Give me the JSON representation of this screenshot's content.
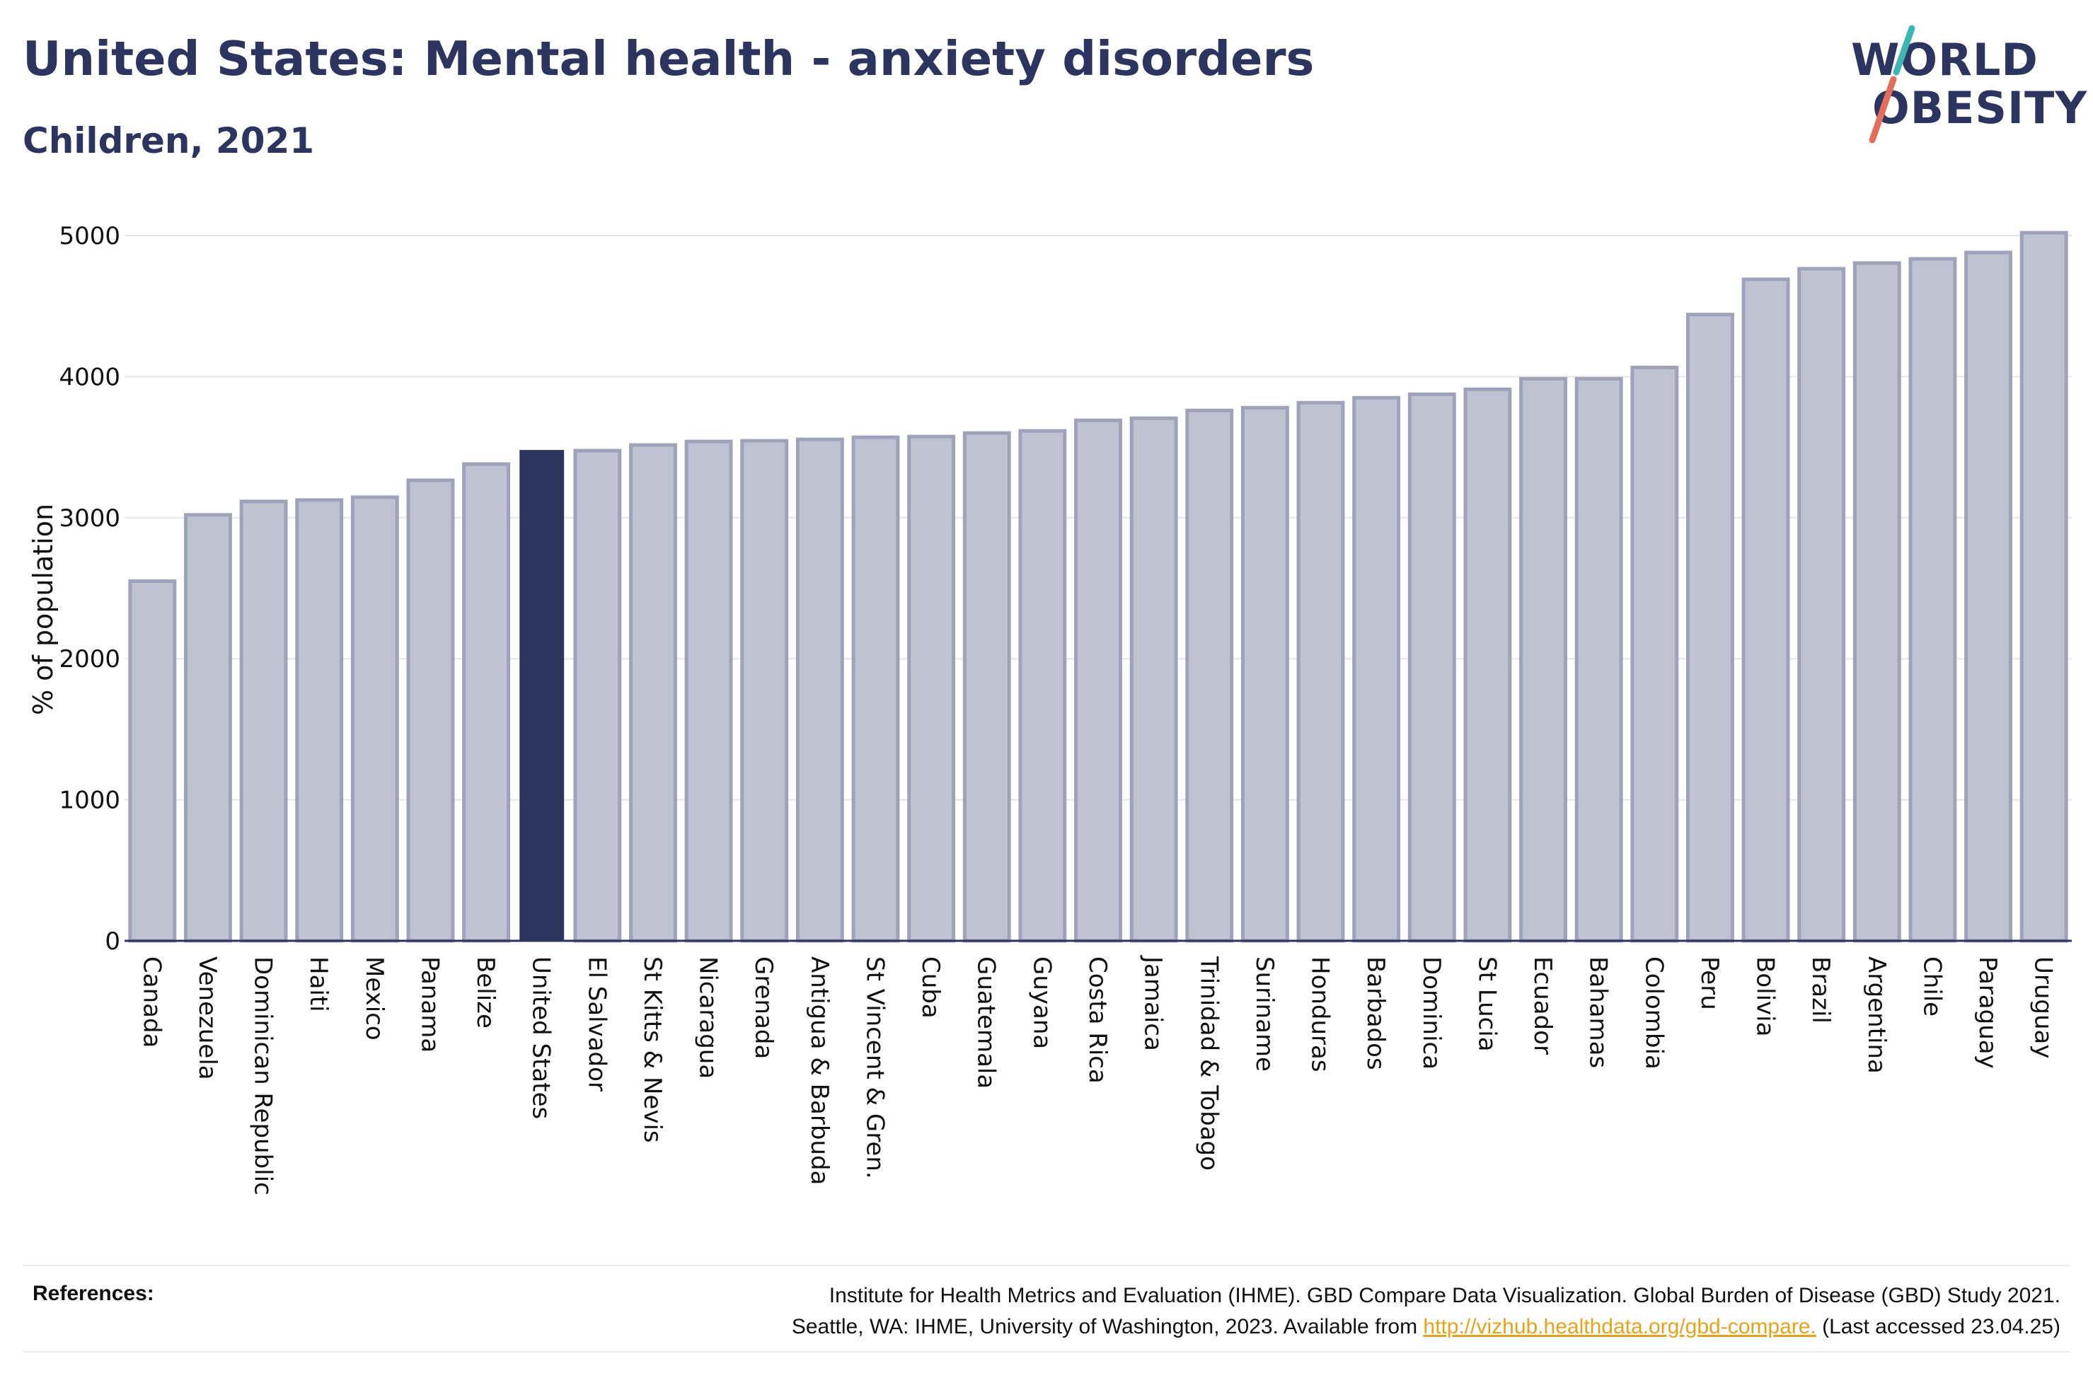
{
  "header": {
    "title": "United States: Mental health - anxiety disorders",
    "subtitle": "Children, 2021"
  },
  "logo": {
    "line1": "WORLD",
    "line2": "OBESITY"
  },
  "colors": {
    "highlight": "#2b3560",
    "bar_fill": "#bfc2d1",
    "bar_stroke": "#9ea3bb",
    "title": "#2b3560",
    "link": "#e8a21a",
    "logo_slash_top": "#3fb6b4",
    "logo_slash_bottom": "#e46c5a"
  },
  "chart_data": {
    "type": "bar",
    "title": "United States: Mental health - anxiety disorders",
    "subtitle": "Children, 2021",
    "ylabel": "% of population",
    "xlabel": "",
    "ylim": [
      0,
      5000
    ],
    "yticks": [
      0,
      1000,
      2000,
      3000,
      4000,
      5000
    ],
    "grid": true,
    "highlight": "United States",
    "categories": [
      "Canada",
      "Venezuela",
      "Dominican Republic",
      "Haiti",
      "Mexico",
      "Panama",
      "Belize",
      "United States",
      "El Salvador",
      "St Kitts & Nevis",
      "Nicaragua",
      "Grenada",
      "Antigua & Barbuda",
      "St Vincent & Gren.",
      "Cuba",
      "Guatemala",
      "Guyana",
      "Costa Rica",
      "Jamaica",
      "Trinidad & Tobago",
      "Suriname",
      "Honduras",
      "Barbados",
      "Dominica",
      "St Lucia",
      "Ecuador",
      "Bahamas",
      "Colombia",
      "Peru",
      "Bolivia",
      "Brazil",
      "Argentina",
      "Chile",
      "Paraguay",
      "Uruguay"
    ],
    "values": [
      2550,
      3020,
      3115,
      3125,
      3145,
      3265,
      3380,
      3480,
      3475,
      3515,
      3540,
      3545,
      3555,
      3570,
      3575,
      3600,
      3615,
      3690,
      3705,
      3760,
      3780,
      3815,
      3850,
      3875,
      3910,
      3985,
      3985,
      4065,
      4440,
      4690,
      4765,
      4805,
      4835,
      4880,
      5020
    ]
  },
  "references": {
    "label": "References:",
    "line1": "Institute for Health Metrics and Evaluation (IHME). GBD Compare Data Visualization. Global Burden of Disease (GBD) Study 2021.",
    "line2_prefix": "Seattle, WA: IHME, University of Washington, 2023. Available from ",
    "link": "http://vizhub.healthdata.org/gbd-compare.",
    "line2_suffix": " (Last accessed 23.04.25)"
  }
}
